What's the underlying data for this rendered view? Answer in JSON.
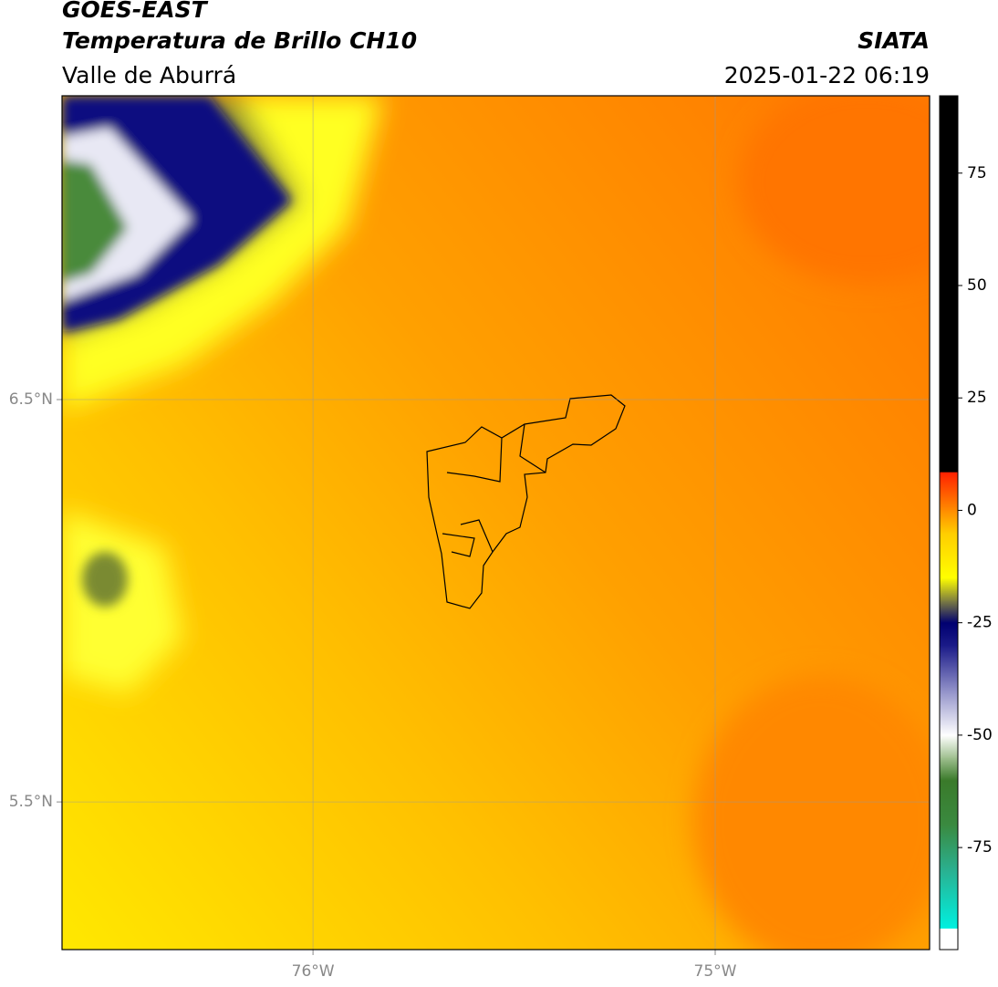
{
  "chart_data": {
    "type": "map",
    "title": "GOES-EAST",
    "subtitle": "Temperatura de Brillo CH10",
    "region": "Valle de Aburrá",
    "source": "SIATA",
    "timestamp": "2025-01-22 06:19",
    "xlim": [
      -76.624,
      -74.467
    ],
    "ylim": [
      5.133,
      7.255
    ],
    "xticks": [
      {
        "value": -76,
        "label": "76°W"
      },
      {
        "value": -75,
        "label": "75°W"
      }
    ],
    "yticks": [
      {
        "value": 6.5,
        "label": "6.5°N"
      },
      {
        "value": 5.5,
        "label": "5.5°N"
      }
    ],
    "grid": true,
    "colorbar": {
      "lim": [
        -97.7,
        92.2
      ],
      "ticks": [
        75,
        50,
        25,
        0,
        -25,
        -50,
        -75
      ],
      "stops": [
        {
          "value": -97.7,
          "color": "#ffffff"
        },
        {
          "value": -93,
          "color": "#ffffff"
        },
        {
          "value": -92.9,
          "color": "#00f0e0"
        },
        {
          "value": -80,
          "color": "#2ab090"
        },
        {
          "value": -70,
          "color": "#3a8a40"
        },
        {
          "value": -60,
          "color": "#3a7a2a"
        },
        {
          "value": -55,
          "color": "#a0c090"
        },
        {
          "value": -50,
          "color": "#ffffff"
        },
        {
          "value": -40,
          "color": "#9090c8"
        },
        {
          "value": -30,
          "color": "#1a1a88"
        },
        {
          "value": -25,
          "color": "#000070"
        },
        {
          "value": -20,
          "color": "#808040"
        },
        {
          "value": -15,
          "color": "#ffff00"
        },
        {
          "value": -5,
          "color": "#ffcc00"
        },
        {
          "value": 0,
          "color": "#ff8c00"
        },
        {
          "value": 8.5,
          "color": "#ff2000"
        },
        {
          "value": 8.6,
          "color": "#000000"
        },
        {
          "value": 92.2,
          "color": "#000000"
        }
      ]
    }
  }
}
